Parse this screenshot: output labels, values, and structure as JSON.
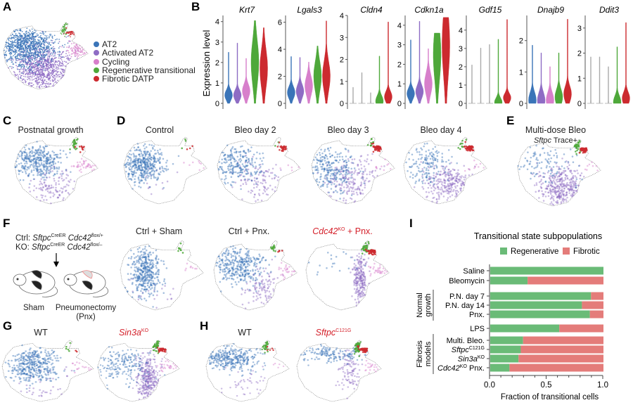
{
  "panels": {
    "A": "A",
    "B": "B",
    "C": "C",
    "D": "D",
    "E": "E",
    "F": "F",
    "G": "G",
    "H": "H",
    "I": "I"
  },
  "colors": {
    "AT2": "#3a74b8",
    "Activated AT2": "#8e6cc4",
    "Cycling": "#d77fcb",
    "Regenerative transitional": "#4ea83a",
    "Fibrotic DATP": "#cc2a2f",
    "bar_regenerative": "#6abb77",
    "bar_fibrotic": "#e47c7a",
    "highlight_text": "#d4202a"
  },
  "legend": [
    "AT2",
    "Activated AT2",
    "Cycling",
    "Regenerative transitional",
    "Fibrotic DATP"
  ],
  "titles": {
    "C": "Postnatal growth",
    "D": [
      "Control",
      "Bleo day 2",
      "Bleo day 3",
      "Bleo day 4"
    ],
    "E": {
      "line1": "Multi-dose Bleo",
      "line2_italic": "Sftpc",
      "line2_rest": " Trace+"
    },
    "F": {
      "sham": "Ctrl + Sham",
      "pnx": "Ctrl + Pnx.",
      "ko_gene": "Cdc42",
      "ko_sup": "KO",
      "ko_rest": " + Pnx."
    },
    "G": {
      "wt": "WT",
      "ko_gene": "Sin3a",
      "ko_sup": "KO"
    },
    "H": {
      "wt": "WT",
      "mut_gene": "Sftpc",
      "mut_sup": "C121G"
    }
  },
  "panelF": {
    "ctrl_prefix": "Ctrl: ",
    "ko_prefix": "KO: ",
    "gene1": "Sftpc",
    "gene1_sup": "CreER",
    "gene2": "Cdc42",
    "ctrl_allele": "flox/+",
    "ko_allele": "flox/–",
    "sham_label": "Sham",
    "pnx_label": "Pneumonectomy",
    "pnx_abbr": "(Pnx)"
  },
  "chart_data": [
    {
      "type": "violin",
      "ylabel": "Expression level",
      "groups": [
        "AT2",
        "Activated AT2",
        "Cycling",
        "Regenerative transitional",
        "Fibrotic DATP"
      ],
      "genes": [
        {
          "name": "Krt7",
          "ticks": [
            0,
            1,
            2,
            3,
            4
          ],
          "ylim": [
            0,
            4.3
          ],
          "max": [
            2.5,
            2.95,
            2.2,
            4.05,
            3.7
          ],
          "mode": [
            0.4,
            0.4,
            0.6,
            2.0,
            1.7
          ]
        },
        {
          "name": "Lgals3",
          "ticks": [
            0,
            2,
            4,
            6
          ],
          "ylim": [
            0,
            6.5
          ],
          "max": [
            3.55,
            3.4,
            3.05,
            4.35,
            6.1
          ],
          "mode": [
            0.8,
            0.9,
            1.3,
            2.0,
            2.0
          ]
        },
        {
          "name": "Cldn4",
          "ticks": [
            0,
            1,
            2,
            3,
            4
          ],
          "ylim": [
            0,
            4
          ],
          "max": [
            0.75,
            1.4,
            0.5,
            2.15,
            3.8
          ],
          "mode": [
            0,
            0,
            0,
            0.1,
            0.3
          ]
        },
        {
          "name": "Cdkn1a",
          "ticks": [
            0,
            1,
            2,
            3,
            4
          ],
          "ylim": [
            0,
            4.5
          ],
          "max": [
            3.25,
            4.2,
            2.8,
            3.6,
            4.4
          ],
          "mode": [
            0.5,
            0.6,
            1.0,
            2.5,
            3.0
          ]
        },
        {
          "name": "Gdf15",
          "ticks": [
            0,
            1,
            2,
            3,
            4
          ],
          "ylim": [
            0,
            4.8
          ],
          "max": [
            2.1,
            3.1,
            3.3,
            3.5,
            4.7
          ],
          "mode": [
            0,
            0,
            0,
            0.05,
            0.3
          ]
        },
        {
          "name": "Dnajb9",
          "ticks": [
            0,
            1,
            2
          ],
          "ylim": [
            0,
            2.8
          ],
          "max": [
            1.9,
            1.65,
            1.2,
            1.65,
            2.75
          ],
          "mode": [
            0.1,
            0.1,
            0.1,
            0.2,
            0.3
          ]
        },
        {
          "name": "Ddit3",
          "ticks": [
            0,
            1,
            2,
            3
          ],
          "ylim": [
            0,
            3.5
          ],
          "max": [
            1.85,
            1.85,
            1.5,
            2.25,
            3.3
          ],
          "mode": [
            0,
            0,
            0,
            0.05,
            0.2
          ]
        }
      ]
    },
    {
      "type": "bar",
      "orientation": "horizontal",
      "stacked": true,
      "title": "Transitional state subpopulations",
      "xlabel": "Fraction of transitional cells",
      "xlim": [
        0,
        1
      ],
      "xticks": [
        "0.0",
        "0.5",
        "1.0"
      ],
      "legend_position": "top",
      "categories": [
        {
          "label": "Saline"
        },
        {
          "label": "Bleomycin"
        },
        {
          "label": "P.N. day 7",
          "group": "Normal growth"
        },
        {
          "label": "P.N. day 14",
          "group": "Normal growth"
        },
        {
          "label": "Pnx.",
          "group": "Normal growth"
        },
        {
          "label": "LPS"
        },
        {
          "label": "Multi. Bleo.",
          "group": "Fibrosis models"
        },
        {
          "label": "Sftpc",
          "sup": "C121G",
          "italic": true,
          "group": "Fibrosis models"
        },
        {
          "label": "Sin3a",
          "sup": "KO",
          "italic": true,
          "group": "Fibrosis models"
        },
        {
          "label": "Cdc42",
          "sup": "KO",
          "italic": true,
          "suffix": " Pnx.",
          "group": "Fibrosis models"
        }
      ],
      "groups": [
        {
          "name": "Normal",
          "name2": "growth"
        },
        {
          "name": "Fibrosis",
          "name2": "models"
        }
      ],
      "series": [
        {
          "name": "Regenerative",
          "values": [
            1.0,
            0.33,
            0.89,
            0.81,
            0.88,
            0.61,
            0.29,
            0.27,
            0.25,
            0.17
          ]
        },
        {
          "name": "Fibrotic",
          "values": [
            0.0,
            0.67,
            0.11,
            0.19,
            0.12,
            0.39,
            0.71,
            0.73,
            0.75,
            0.83
          ]
        }
      ]
    }
  ]
}
